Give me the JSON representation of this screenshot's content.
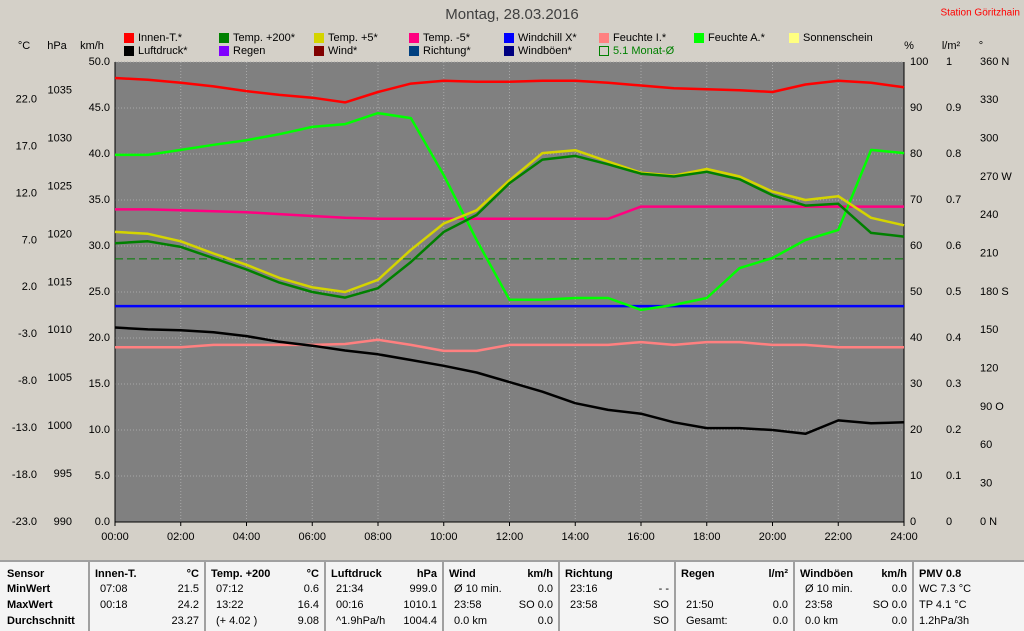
{
  "chart_data": {
    "type": "line",
    "title": "Montag, 28.03.2016",
    "station": "Station Göritzhain",
    "x": [
      0,
      1,
      2,
      3,
      4,
      5,
      6,
      7,
      8,
      9,
      10,
      11,
      12,
      13,
      14,
      15,
      16,
      17,
      18,
      19,
      20,
      21,
      22,
      23,
      24
    ],
    "xlim": [
      0,
      24
    ],
    "xticks": [
      {
        "value": 0,
        "label": "00:00"
      },
      {
        "value": 2,
        "label": "02:00"
      },
      {
        "value": 4,
        "label": "04:00"
      },
      {
        "value": 6,
        "label": "06:00"
      },
      {
        "value": 8,
        "label": "08:00"
      },
      {
        "value": 10,
        "label": "10:00"
      },
      {
        "value": 12,
        "label": "12:00"
      },
      {
        "value": 14,
        "label": "14:00"
      },
      {
        "value": 16,
        "label": "16:00"
      },
      {
        "value": 18,
        "label": "18:00"
      },
      {
        "value": 20,
        "label": "20:00"
      },
      {
        "value": 22,
        "label": "22:00"
      },
      {
        "value": 24,
        "label": "24:00"
      }
    ],
    "grid": true,
    "axes": [
      {
        "id": "temp",
        "unit": "°C",
        "side": "left",
        "ylim": [
          -23,
          26
        ],
        "yticks": [
          {
            "value": -23,
            "label": "-23.0"
          },
          {
            "value": -18,
            "label": "-18.0"
          },
          {
            "value": -13,
            "label": "-13.0"
          },
          {
            "value": -8,
            "label": "-8.0"
          },
          {
            "value": -3,
            "label": "-3.0"
          },
          {
            "value": 2,
            "label": "2.0"
          },
          {
            "value": 7,
            "label": "7.0"
          },
          {
            "value": 12,
            "label": "12.0"
          },
          {
            "value": 17,
            "label": "17.0"
          },
          {
            "value": 22,
            "label": "22.0"
          }
        ]
      },
      {
        "id": "hpa",
        "unit": "hPa",
        "side": "left",
        "ylim": [
          990,
          1038
        ],
        "yticks": [
          990,
          995,
          1000,
          1005,
          1010,
          1015,
          1020,
          1025,
          1030,
          1035
        ]
      },
      {
        "id": "kmh",
        "unit": "km/h",
        "side": "left",
        "ylim": [
          0,
          50
        ],
        "yticks": [
          {
            "value": 0,
            "label": "0.0"
          },
          {
            "value": 5,
            "label": "5.0"
          },
          {
            "value": 10,
            "label": "10.0"
          },
          {
            "value": 15,
            "label": "15.0"
          },
          {
            "value": 20,
            "label": "20.0"
          },
          {
            "value": 25,
            "label": "25.0"
          },
          {
            "value": 30,
            "label": "30.0"
          },
          {
            "value": 35,
            "label": "35.0"
          },
          {
            "value": 40,
            "label": "40.0"
          },
          {
            "value": 45,
            "label": "45.0"
          },
          {
            "value": 50,
            "label": "50.0"
          }
        ]
      },
      {
        "id": "pct",
        "unit": "%",
        "side": "right",
        "ylim": [
          0,
          100
        ],
        "yticks": [
          0,
          10,
          20,
          30,
          40,
          50,
          60,
          70,
          80,
          90,
          100
        ]
      },
      {
        "id": "rain",
        "unit": "l/m²",
        "side": "right",
        "ylim": [
          0,
          1
        ],
        "yticks": [
          0,
          0.1,
          0.2,
          0.3,
          0.4,
          0.5,
          0.6,
          0.7,
          0.8,
          0.9,
          1
        ]
      },
      {
        "id": "deg",
        "unit": "°",
        "side": "right",
        "ylim": [
          0,
          360
        ],
        "yticks": [
          {
            "value": 0,
            "label": "0 N"
          },
          30,
          60,
          {
            "value": 90,
            "label": "90 O"
          },
          120,
          150,
          {
            "value": 180,
            "label": "180 S"
          },
          210,
          240,
          {
            "value": 270,
            "label": "270 W"
          },
          300,
          330,
          {
            "value": 360,
            "label": "360 N"
          }
        ]
      }
    ],
    "series": [
      {
        "name": "Innen-T.*",
        "color": "#ff0000",
        "axis": "temp",
        "values": [
          24.3,
          24.1,
          23.8,
          23.4,
          22.9,
          22.5,
          22.2,
          21.7,
          22.8,
          23.7,
          24.0,
          23.9,
          23.9,
          24.0,
          24.0,
          23.8,
          23.5,
          23.2,
          23.1,
          23.0,
          22.8,
          23.6,
          24.0,
          23.8,
          23.3
        ]
      },
      {
        "name": "Temp. +200*",
        "color": "#008000",
        "axis": "temp",
        "values": [
          6.7,
          6.9,
          6.3,
          5.1,
          3.9,
          2.5,
          1.5,
          0.9,
          1.9,
          4.7,
          7.9,
          9.7,
          13.1,
          15.6,
          16.0,
          15.1,
          14.1,
          13.8,
          14.3,
          13.5,
          11.8,
          10.7,
          10.9,
          7.8,
          7.4
        ]
      },
      {
        "name": "Temp. +5*",
        "color": "#d4d400",
        "axis": "temp",
        "values": [
          7.9,
          7.7,
          6.9,
          5.6,
          4.4,
          3.0,
          2.0,
          1.5,
          2.8,
          6.0,
          8.8,
          10.2,
          13.4,
          16.3,
          16.6,
          15.4,
          14.2,
          13.9,
          14.6,
          13.8,
          12.2,
          11.3,
          11.7,
          9.4,
          8.6
        ]
      },
      {
        "name": "Temp. -5*",
        "color": "#ff0080",
        "axis": "temp",
        "values": [
          10.3,
          10.3,
          10.2,
          10.1,
          10.0,
          9.8,
          9.6,
          9.4,
          9.3,
          9.3,
          9.3,
          9.3,
          9.3,
          9.3,
          9.3,
          9.3,
          10.6,
          10.6,
          10.6,
          10.6,
          10.6,
          10.6,
          10.6,
          10.6,
          10.6
        ]
      },
      {
        "name": "Windchill X*",
        "color": "#0000ff",
        "axis": "temp",
        "values": [
          0,
          0,
          0,
          0,
          0,
          0,
          0,
          0,
          0,
          0,
          0,
          0,
          0,
          0,
          0,
          0,
          0,
          0,
          0,
          0,
          0,
          0,
          0,
          0,
          0
        ]
      },
      {
        "name": "Feuchte I.*",
        "color": "#ff8080",
        "axis": "pct",
        "values": [
          38.0,
          38.0,
          38.0,
          38.5,
          38.5,
          38.5,
          38.5,
          38.7,
          39.6,
          38.5,
          37.2,
          37.2,
          38.5,
          38.5,
          38.5,
          38.5,
          39.1,
          38.5,
          39.1,
          39.1,
          38.5,
          38.5,
          38.0,
          38.0,
          38.0
        ]
      },
      {
        "name": "Feuchte A.*",
        "color": "#00ff00",
        "axis": "pct",
        "values": [
          79.8,
          79.8,
          80.9,
          82.0,
          83.0,
          84.3,
          85.9,
          86.5,
          88.9,
          87.8,
          75.4,
          61.3,
          48.3,
          48.3,
          48.7,
          48.7,
          46.1,
          47.2,
          48.7,
          55.2,
          57.4,
          61.3,
          63.5,
          80.9,
          80.2
        ]
      },
      {
        "name": "Sonnenschein",
        "color": "#ffff80"
      },
      {
        "name": "Luftdruck*",
        "color": "#000000",
        "axis": "hpa",
        "values": [
          1010.3,
          1010.1,
          1010.0,
          1009.8,
          1009.4,
          1008.8,
          1008.4,
          1007.9,
          1007.5,
          1006.9,
          1006.3,
          1005.6,
          1004.6,
          1003.6,
          1002.4,
          1001.7,
          1001.3,
          1000.4,
          999.8,
          999.8,
          999.6,
          999.2,
          1000.6,
          1000.3,
          1000.4
        ]
      },
      {
        "name": "Regen",
        "color": "#8000ff"
      },
      {
        "name": "Wind*",
        "color": "#800000"
      },
      {
        "name": "Richtung*",
        "color": "#004080"
      },
      {
        "name": "Windböen*",
        "color": "#000080"
      },
      {
        "name": "5.1 Monat-Ø",
        "color": "#008000",
        "axis": "pct",
        "dashed": true,
        "values": [
          57.2,
          57.2,
          57.2,
          57.2,
          57.2,
          57.2,
          57.2,
          57.2,
          57.2,
          57.2,
          57.2,
          57.2,
          57.2,
          57.2,
          57.2,
          57.2,
          57.2,
          57.2,
          57.2,
          57.2,
          57.2,
          57.2,
          57.2,
          57.2,
          57.2
        ]
      }
    ]
  },
  "table": {
    "header": "Sensor",
    "row_labels": [
      "MinWert",
      "MaxWert",
      "Durchschnitt"
    ],
    "groups": [
      {
        "title": "Innen-T.",
        "unit": "°C",
        "rows": [
          {
            "time": "07:08",
            "value": "21.5"
          },
          {
            "time": "00:18",
            "value": "24.2"
          },
          {
            "value": "23.27"
          }
        ]
      },
      {
        "title": "Temp. +200",
        "unit": "°C",
        "rows": [
          {
            "time": "07:12",
            "value": "0.6"
          },
          {
            "time": "13:22",
            "value": "16.4"
          },
          {
            "time": "(+ 4.02 )",
            "value": "9.08"
          }
        ]
      },
      {
        "title": "Luftdruck",
        "unit": "hPa",
        "rows": [
          {
            "time": "21:34",
            "value": "999.0"
          },
          {
            "time": "00:16",
            "value": "1010.1"
          },
          {
            "time": "^1.9hPa/h",
            "value": "1004.4"
          }
        ]
      },
      {
        "title": "Wind",
        "unit": "km/h",
        "rows": [
          {
            "time": "Ø 10 min.",
            "value": "0.0"
          },
          {
            "time": "23:58",
            "value": "SO 0.0"
          },
          {
            "time": "0.0 km",
            "value": "0.0"
          }
        ]
      },
      {
        "title": "Richtung",
        "rows": [
          {
            "time": "23:16",
            "value": "- -"
          },
          {
            "time": "23:58",
            "value": "SO"
          },
          {
            "value": "SO"
          }
        ]
      },
      {
        "title": "Regen",
        "unit": "l/m²",
        "rows": [
          {},
          {
            "time": "21:50",
            "value": "0.0"
          },
          {
            "time": "Gesamt:",
            "value": "0.0"
          }
        ]
      },
      {
        "title": "Windböen",
        "unit": "km/h",
        "rows": [
          {
            "time": "Ø 10 min.",
            "value": "0.0"
          },
          {
            "time": "23:58",
            "value": "SO 0.0"
          },
          {
            "time": "0.0 km",
            "value": "0.0"
          }
        ]
      },
      {
        "title": "PMV 0.8",
        "rows": [
          {
            "time": "WC 7.3 °C"
          },
          {
            "time": "TP 4.1 °C"
          },
          {
            "time": "1.2hPa/3h"
          }
        ]
      }
    ]
  }
}
